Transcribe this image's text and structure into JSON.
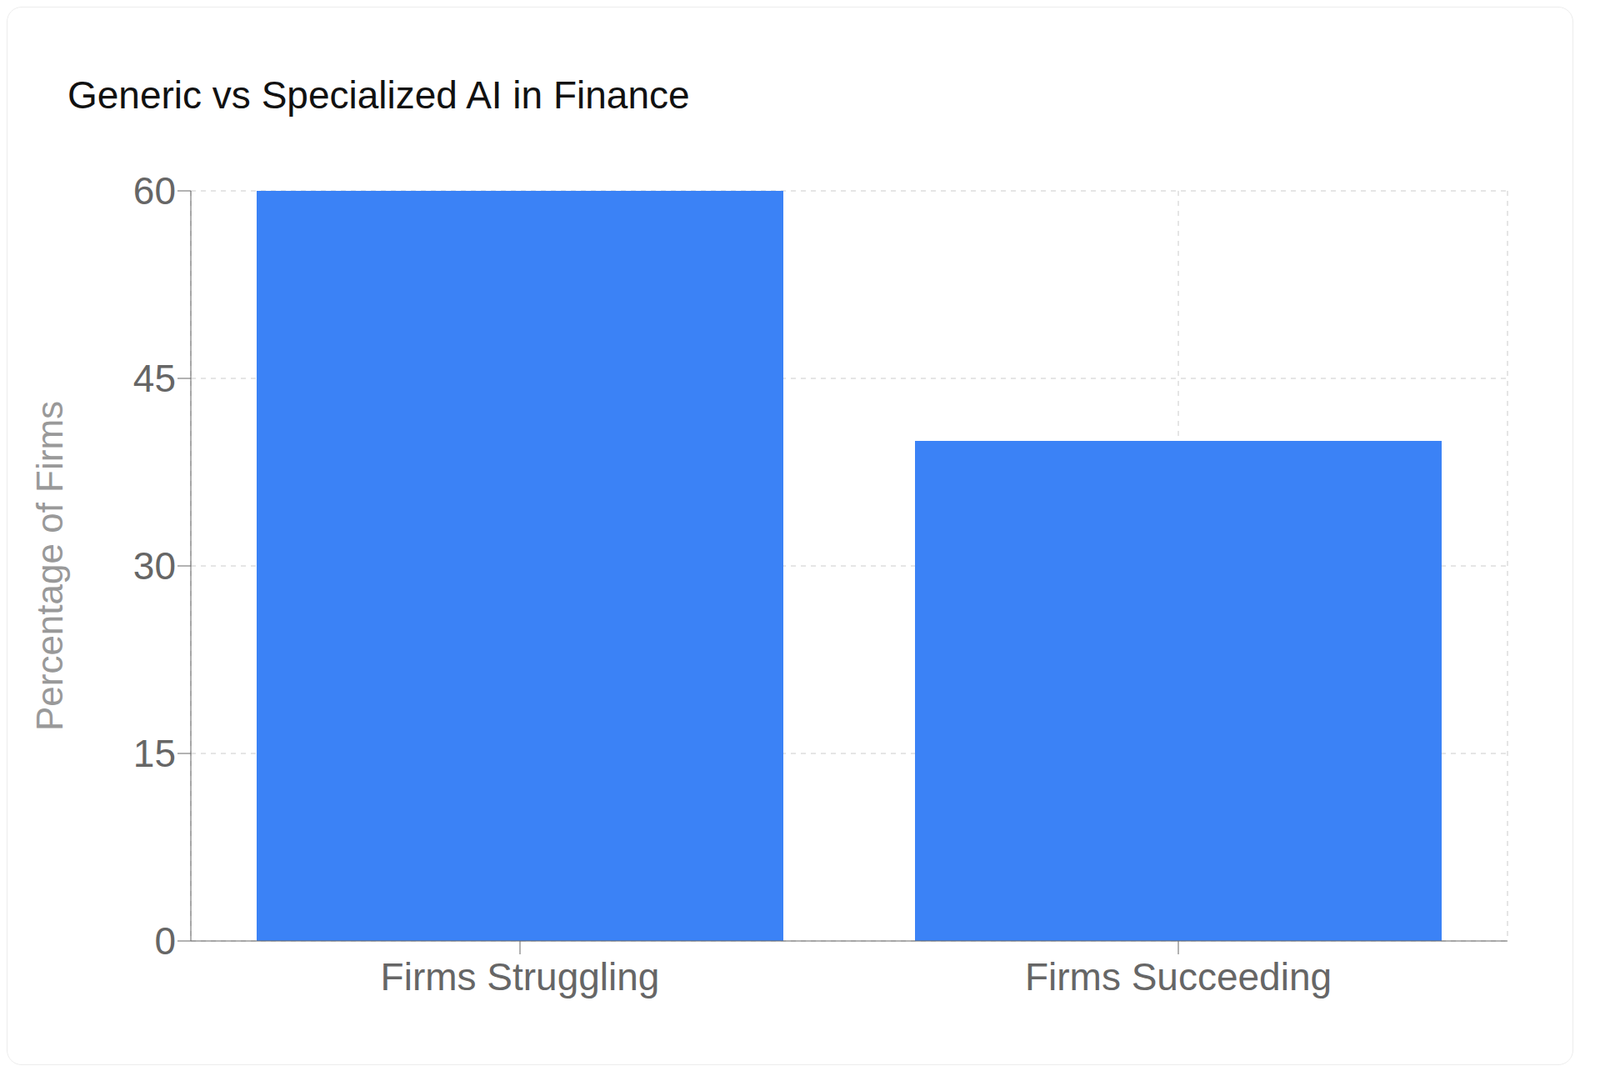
{
  "chart_data": {
    "type": "bar",
    "title": "Generic vs Specialized AI in Finance",
    "y_label": "Percentage of Firms",
    "categories": [
      "Firms Struggling",
      "Firms Succeeding"
    ],
    "values": [
      60,
      40
    ],
    "color": "#3b82f6",
    "ylim": [
      0,
      60
    ],
    "yticks": [
      0,
      15,
      30,
      45,
      60
    ],
    "grid": true
  }
}
